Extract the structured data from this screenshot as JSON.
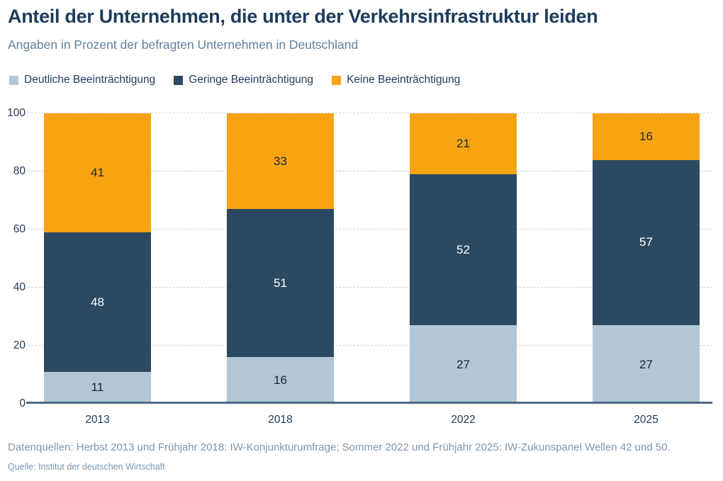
{
  "header": {
    "title": "Anteil der Unternehmen, die unter der Verkehrsinfrastruktur leiden",
    "subtitle": "Angaben in Prozent der befragten Unternehmen in Deutschland"
  },
  "chart_data": {
    "type": "bar",
    "stacked": true,
    "title": "Anteil der Unternehmen, die unter der Verkehrsinfrastruktur leiden",
    "subtitle": "Angaben in Prozent der befragten Unternehmen in Deutschland",
    "categories": [
      "2013",
      "2018",
      "2022",
      "2025"
    ],
    "series": [
      {
        "name": "Deutliche Beeinträchtigung",
        "color": "#b2c6d5",
        "label_color": "#13283b",
        "values": [
          11,
          16,
          27,
          27
        ]
      },
      {
        "name": "Geringe Beeinträchtigung",
        "color": "#2c4963",
        "label_color": "#ffffff",
        "values": [
          48,
          51,
          52,
          57
        ]
      },
      {
        "name": "Keine Beeinträchtigung",
        "color": "#f8a311",
        "label_color": "#13283b",
        "values": [
          41,
          33,
          21,
          16
        ]
      }
    ],
    "yticks": [
      0,
      20,
      40,
      60,
      80,
      100
    ],
    "ylim": [
      0,
      100
    ],
    "grid": "dashed horizontal, solid baseline at 0",
    "legend_position": "top-left"
  },
  "colors": {
    "title_text": "#1e3c5c",
    "subtitle_text": "#60809e",
    "axis_text": "#1c3a57",
    "gridline": "#c8d5e2",
    "baseline": "#4c6983",
    "footer_text": "#7d97af"
  },
  "footer": {
    "datasources": "Datenquellen: Herbst 2013 und Frühjahr 2018: IW-Konjunkturumfrage; Sommer 2022 und Frühjahr 2025: IW-Zukunspanel Wellen 42 und 50.",
    "source": "Quelle: Institut der deutschen Wirtschaft"
  }
}
